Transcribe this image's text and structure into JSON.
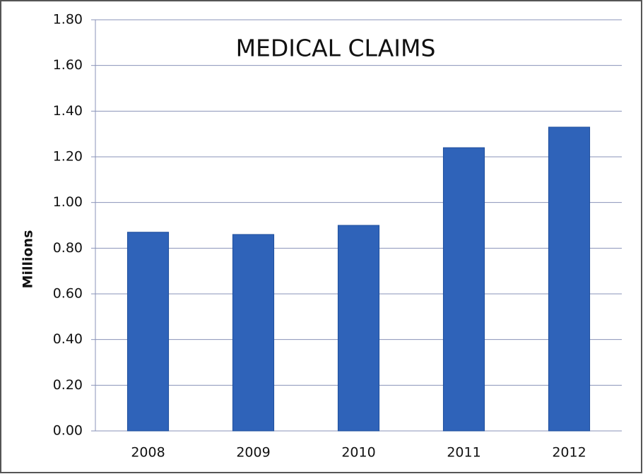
{
  "chart_data": {
    "type": "bar",
    "title": "MEDICAL CLAIMS",
    "y_label": "Millions",
    "categories": [
      "2008",
      "2009",
      "2010",
      "2011",
      "2012"
    ],
    "values": [
      0.87,
      0.86,
      0.9,
      1.24,
      1.33
    ],
    "color": "#2f63b9",
    "ylim": [
      0,
      1.8
    ],
    "yticks": [
      {
        "value": 0,
        "label": "0.00"
      },
      {
        "value": 0.2,
        "label": "0.20"
      },
      {
        "value": 0.4,
        "label": "0.40"
      },
      {
        "value": 0.6,
        "label": "0.60"
      },
      {
        "value": 0.8,
        "label": "0.80"
      },
      {
        "value": 1.0,
        "label": "1.00"
      },
      {
        "value": 1.2,
        "label": "1.20"
      },
      {
        "value": 1.4,
        "label": "1.40"
      },
      {
        "value": 1.6,
        "label": "1.60"
      },
      {
        "value": 1.8,
        "label": "1.80"
      }
    ],
    "grid": true
  }
}
